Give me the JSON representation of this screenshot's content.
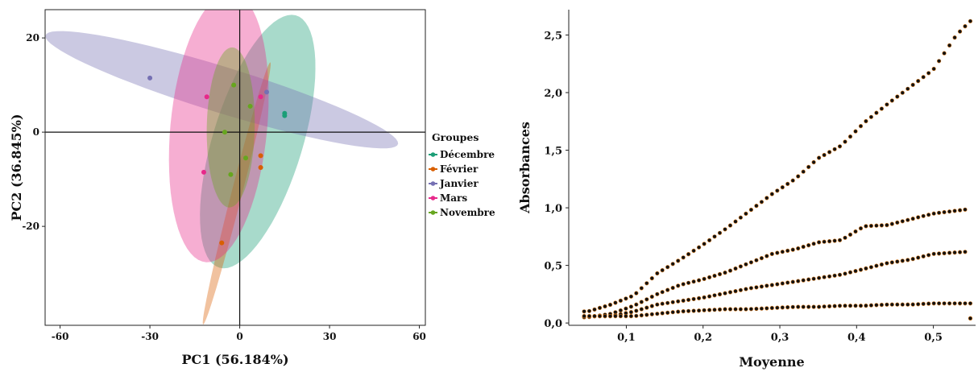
{
  "chart_data": [
    {
      "type": "scatter",
      "subtype": "pca-biplot-with-ellipses",
      "title": "",
      "xlabel": "PC1 (56.184%)",
      "ylabel": "PC2 (36.845%)",
      "xlim": [
        -65,
        62
      ],
      "ylim": [
        -41,
        26
      ],
      "xticks": [
        -60,
        -30,
        0,
        30,
        60
      ],
      "yticks": [
        20,
        0,
        -20
      ],
      "xtick_labels": [
        "-60",
        "-30",
        "0",
        "30",
        "60"
      ],
      "ytick_labels": [
        "20",
        "0",
        "-20"
      ],
      "grid": false,
      "zero_lines": true,
      "legend": {
        "title": "Groupes",
        "placement": "right",
        "entries": [
          "Décembre",
          "Février",
          "Janvier",
          "Mars",
          "Novembre"
        ]
      },
      "series": [
        {
          "name": "Décembre",
          "color": "#1b9e77",
          "points": [
            [
              15,
              4
            ],
            [
              15,
              3.5
            ]
          ],
          "ellipse": {
            "cx": 6,
            "cy": -2,
            "rx": 30,
            "ry": 14,
            "angle_deg": 60
          }
        },
        {
          "name": "Février",
          "color": "#d95f02",
          "points": [
            [
              7,
              -5
            ],
            [
              7,
              -7.5
            ],
            [
              -6,
              -23.5
            ]
          ],
          "ellipse": {
            "cx": -1,
            "cy": -13,
            "rx": 30,
            "ry": 1.7,
            "angle_deg": 68
          }
        },
        {
          "name": "Janvier",
          "color": "#7570b3",
          "points": [
            [
              -30,
              11.5
            ],
            [
              9,
              8.5
            ]
          ],
          "ellipse": {
            "cx": -6,
            "cy": 9,
            "rx": 60,
            "ry": 5,
            "angle_deg": -11
          }
        },
        {
          "name": "Mars",
          "color": "#e7298a",
          "points": [
            [
              -11,
              7.5
            ],
            [
              7,
              7.5
            ],
            [
              -12,
              -8.5
            ]
          ],
          "ellipse": {
            "cx": -7,
            "cy": 1,
            "rx": 29,
            "ry": 16,
            "angle_deg": 79
          }
        },
        {
          "name": "Novembre",
          "color": "#66a61e",
          "points": [
            [
              -2,
              10
            ],
            [
              3.5,
              5.5
            ],
            [
              -5,
              0
            ],
            [
              2,
              -5.5
            ],
            [
              -3,
              -9
            ]
          ],
          "ellipse": {
            "cx": -3,
            "cy": 1,
            "rx": 17,
            "ry": 8,
            "angle_deg": 88
          }
        }
      ]
    },
    {
      "type": "scatter",
      "title": "",
      "xlabel": "Moyenne",
      "ylabel": "Absorbances",
      "xlim": [
        0.025,
        0.555
      ],
      "ylim": [
        -0.02,
        2.72
      ],
      "xticks": [
        0.1,
        0.2,
        0.3,
        0.4,
        0.5
      ],
      "yticks": [
        0.0,
        0.5,
        1.0,
        1.5,
        2.0,
        2.5
      ],
      "xtick_labels": [
        "0,1",
        "0,2",
        "0,3",
        "0,4",
        "0,5"
      ],
      "ytick_labels": [
        "0,0",
        "0,5",
        "1,0",
        "1,5",
        "2,0",
        "2,5"
      ],
      "grid": false,
      "marker": {
        "fill": "#111111",
        "edge": "#d97a1c"
      },
      "series": [
        {
          "name": "",
          "points": [
            [
              0.05,
              0.1
            ],
            [
              0.08,
              0.16
            ],
            [
              0.11,
              0.24
            ],
            [
              0.14,
              0.43
            ],
            [
              0.17,
              0.55
            ],
            [
              0.2,
              0.68
            ],
            [
              0.23,
              0.82
            ],
            [
              0.26,
              0.97
            ],
            [
              0.29,
              1.12
            ],
            [
              0.32,
              1.25
            ],
            [
              0.35,
              1.43
            ],
            [
              0.38,
              1.54
            ],
            [
              0.41,
              1.74
            ],
            [
              0.44,
              1.9
            ],
            [
              0.47,
              2.05
            ],
            [
              0.5,
              2.2
            ],
            [
              0.53,
              2.5
            ],
            [
              0.548,
              2.62
            ],
            [
              0.05,
              0.05
            ],
            [
              0.08,
              0.08
            ],
            [
              0.11,
              0.15
            ],
            [
              0.14,
              0.25
            ],
            [
              0.17,
              0.33
            ],
            [
              0.2,
              0.38
            ],
            [
              0.23,
              0.44
            ],
            [
              0.26,
              0.52
            ],
            [
              0.29,
              0.6
            ],
            [
              0.32,
              0.64
            ],
            [
              0.35,
              0.7
            ],
            [
              0.38,
              0.72
            ],
            [
              0.41,
              0.84
            ],
            [
              0.44,
              0.85
            ],
            [
              0.47,
              0.9
            ],
            [
              0.5,
              0.95
            ],
            [
              0.548,
              0.99
            ],
            [
              0.05,
              0.04
            ],
            [
              0.08,
              0.06
            ],
            [
              0.11,
              0.1
            ],
            [
              0.14,
              0.16
            ],
            [
              0.17,
              0.19
            ],
            [
              0.2,
              0.22
            ],
            [
              0.23,
              0.26
            ],
            [
              0.26,
              0.3
            ],
            [
              0.29,
              0.33
            ],
            [
              0.32,
              0.36
            ],
            [
              0.35,
              0.39
            ],
            [
              0.38,
              0.42
            ],
            [
              0.41,
              0.47
            ],
            [
              0.44,
              0.52
            ],
            [
              0.47,
              0.55
            ],
            [
              0.5,
              0.6
            ],
            [
              0.548,
              0.62
            ],
            [
              0.05,
              0.02
            ],
            [
              0.08,
              0.04
            ],
            [
              0.11,
              0.06
            ],
            [
              0.14,
              0.08
            ],
            [
              0.17,
              0.1
            ],
            [
              0.2,
              0.11
            ],
            [
              0.23,
              0.12
            ],
            [
              0.26,
              0.12
            ],
            [
              0.29,
              0.13
            ],
            [
              0.32,
              0.14
            ],
            [
              0.35,
              0.14
            ],
            [
              0.38,
              0.15
            ],
            [
              0.41,
              0.15
            ],
            [
              0.44,
              0.16
            ],
            [
              0.47,
              0.16
            ],
            [
              0.5,
              0.17
            ],
            [
              0.548,
              0.17
            ]
          ]
        }
      ]
    }
  ]
}
